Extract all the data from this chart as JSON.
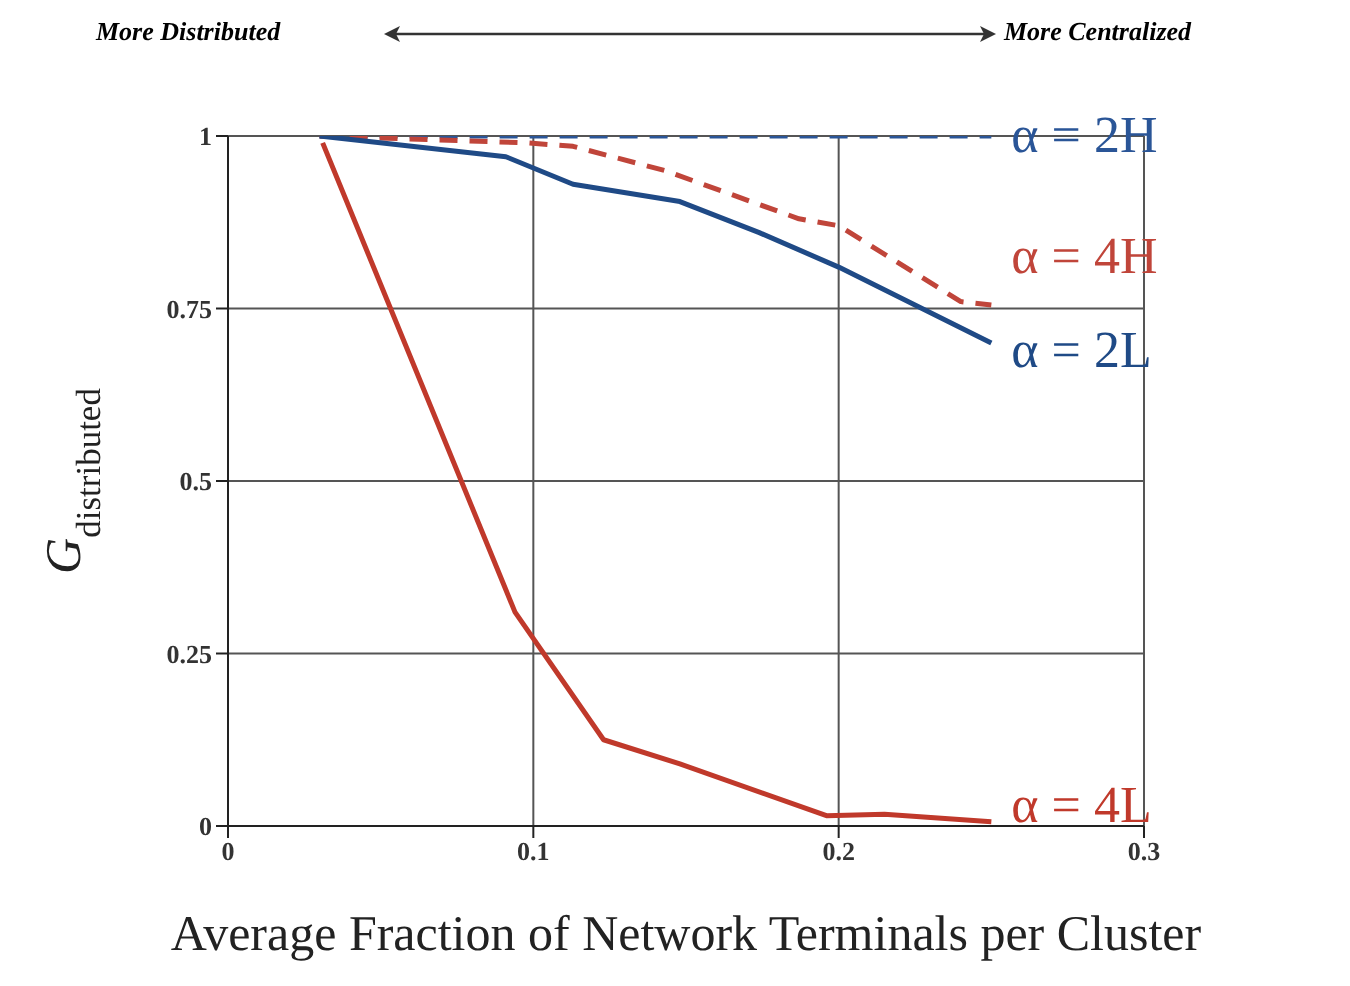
{
  "chart_data": {
    "type": "line",
    "xlabel": "Average Fraction of Network Terminals per Cluster",
    "ylabel": "G$_{distributed}$",
    "annotations": [
      "More Distributed",
      "More Centralized"
    ],
    "xlim": [
      0,
      0.3
    ],
    "xticks": [
      0,
      0.1,
      0.2,
      0.3
    ],
    "ylim": [
      0,
      1
    ],
    "yticks": [
      0,
      0.25,
      0.5,
      0.75,
      1
    ],
    "grid": true,
    "legend": false,
    "marker": "none",
    "series": [
      {
        "name": "α = 2H",
        "color": "#2a5597",
        "line_style": "dashed",
        "x": [
          0.03,
          0.25
        ],
        "values": [
          1,
          1
        ]
      },
      {
        "name": "α = 4H",
        "color": "#c0453a",
        "line_style": "dashed",
        "x": [
          0.03,
          0.098,
          0.113,
          0.143,
          0.187,
          0.2,
          0.24,
          0.25
        ],
        "values": [
          1,
          0.99,
          0.985,
          0.95,
          0.88,
          0.87,
          0.76,
          0.755
        ]
      },
      {
        "name": "α = 2L",
        "color": "#1f4a86",
        "line_style": "solid",
        "x": [
          0.03,
          0.091,
          0.113,
          0.148,
          0.174,
          0.2,
          0.25
        ],
        "values": [
          1,
          0.97,
          0.93,
          0.905,
          0.86,
          0.81,
          0.7
        ]
      },
      {
        "name": "α = 4L",
        "color": "#c0392b",
        "line_style": "solid",
        "x": [
          0.031,
          0.094,
          0.123,
          0.148,
          0.196,
          0.215,
          0.25
        ],
        "values": [
          0.99,
          0.31,
          0.125,
          0.09,
          0.015,
          0.017,
          0.006
        ]
      }
    ]
  }
}
